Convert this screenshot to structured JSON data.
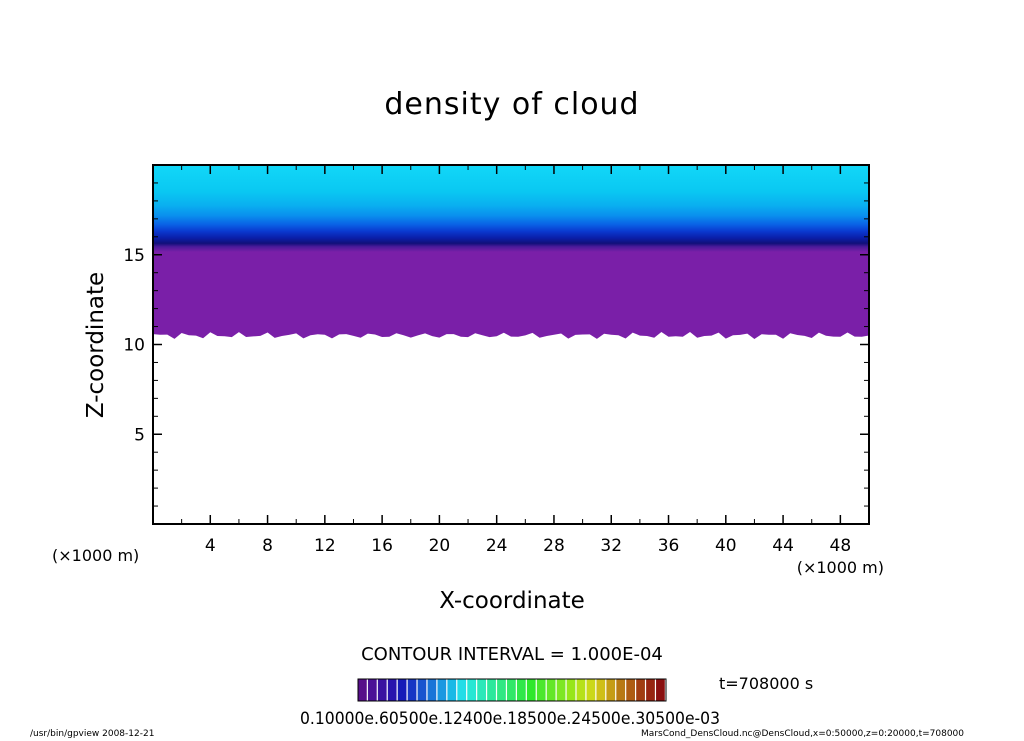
{
  "chart_data": {
    "type": "heatmap",
    "title": "density of cloud",
    "xlabel": "X-coordinate",
    "ylabel": "Z-coordinate",
    "x_unit": "(×1000 m)",
    "z_unit": "(×1000 m)",
    "xlim": [
      0,
      50
    ],
    "ylim": [
      0,
      20
    ],
    "x_ticks": [
      4,
      8,
      12,
      16,
      20,
      24,
      28,
      32,
      36,
      40,
      44,
      48
    ],
    "y_ticks": [
      5,
      10,
      15
    ],
    "cloud_base_z": 10.5,
    "cloud_top_z": 20,
    "vertical_profile": [
      {
        "z": 10.0,
        "color": "#7a1fa8"
      },
      {
        "z": 10.6,
        "color": "#4a1a9a"
      },
      {
        "z": 11.0,
        "color": "#10107a"
      },
      {
        "z": 11.6,
        "color": "#0a1ea8"
      },
      {
        "z": 12.4,
        "color": "#0a3ad0"
      },
      {
        "z": 13.2,
        "color": "#0a64e6"
      },
      {
        "z": 14.2,
        "color": "#0a90ee"
      },
      {
        "z": 15.4,
        "color": "#0ab0f0"
      },
      {
        "z": 17.0,
        "color": "#0ac8f2"
      },
      {
        "z": 20.0,
        "color": "#12d8f8"
      }
    ],
    "contour_interval_text": "CONTOUR INTERVAL = 1.000E-04",
    "colorbar": {
      "label_text": "0.10000e.60500e.12400e.18500e.24500e.30500e-03",
      "n_levels": 31
    }
  },
  "time_label": "t=708000 s",
  "footer_left": "/usr/bin/gpview   2008-12-21",
  "footer_right": "MarsCond_DensCloud.nc@DensCloud,x=0:50000,z=0:20000,t=708000"
}
